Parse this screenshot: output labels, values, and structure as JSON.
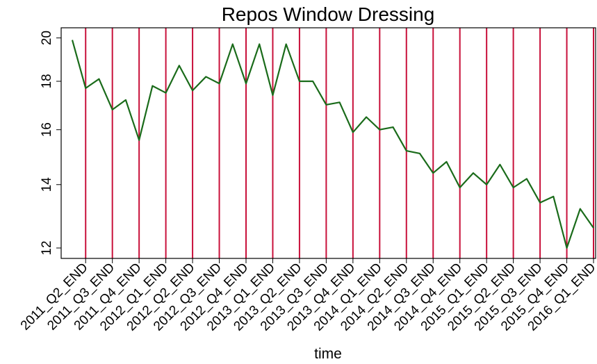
{
  "chart_data": {
    "type": "line",
    "title": "Repos Window Dressing",
    "x_label": "time",
    "categories": [
      null,
      "2011_Q2_END",
      null,
      "2011_Q3_END",
      null,
      "2011_Q4_END",
      null,
      "2012_Q1_END",
      null,
      "2012_Q2_END",
      null,
      "2012_Q3_END",
      null,
      "2012_Q4_END",
      null,
      "2013_Q1_END",
      null,
      "2013_Q2_END",
      null,
      "2013_Q3_END",
      null,
      "2013_Q4_END",
      null,
      "2014_Q1_END",
      null,
      "2014_Q2_END",
      null,
      "2014_Q3_END",
      null,
      "2014_Q4_END",
      null,
      "2015_Q1_END",
      null,
      "2015_Q2_END",
      null,
      "2015_Q3_END",
      null,
      "2015_Q4_END",
      null,
      "2016_Q1_END"
    ],
    "values": [
      19.9,
      17.7,
      18.1,
      16.8,
      17.2,
      15.6,
      17.8,
      17.5,
      18.7,
      17.6,
      18.2,
      17.9,
      19.7,
      17.9,
      19.7,
      17.4,
      19.7,
      18.0,
      18.0,
      17.0,
      17.1,
      15.9,
      16.5,
      16.0,
      16.1,
      15.2,
      15.1,
      14.4,
      14.8,
      13.9,
      14.4,
      14.0,
      14.7,
      13.9,
      14.2,
      13.4,
      13.6,
      12.0,
      13.2,
      12.6
    ],
    "color": "#1a6b1a",
    "quarter_line_color": "#c8103a",
    "ylim": [
      11.7,
      20.5
    ],
    "yticks": [
      12,
      14,
      16,
      18,
      20
    ],
    "y_scale": "log"
  }
}
